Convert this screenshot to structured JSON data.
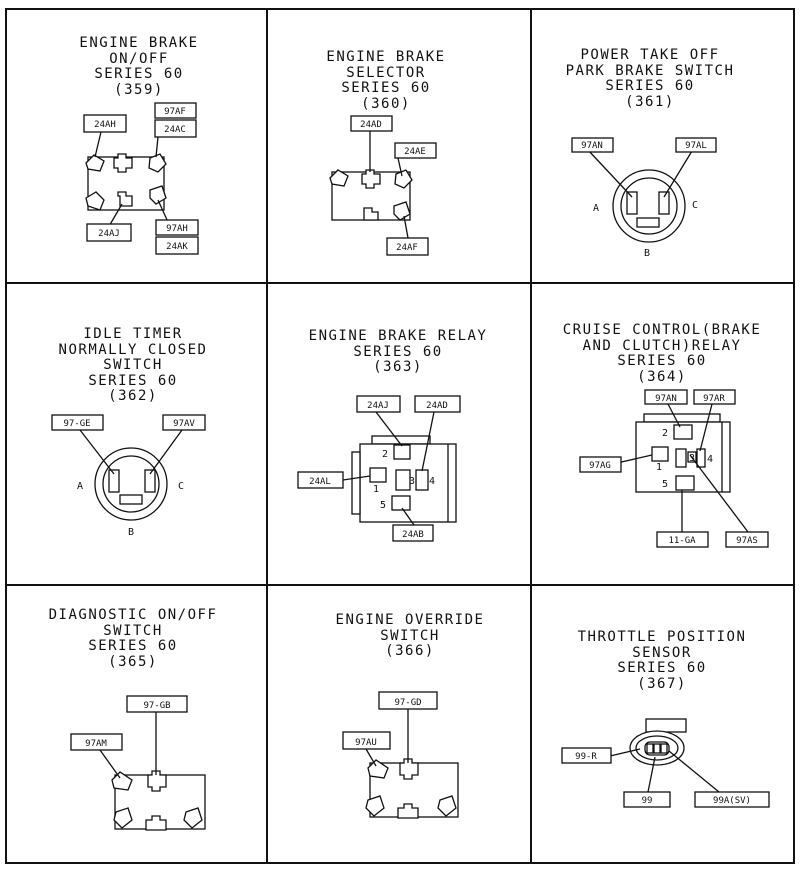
{
  "panels": [
    {
      "title": [
        "ENGINE BRAKE",
        "ON/OFF",
        "SERIES 60",
        "(359)"
      ],
      "labels": [
        "24AH",
        "97AF",
        "24AC",
        "24AJ",
        "97AH",
        "24AK"
      ]
    },
    {
      "title": [
        "ENGINE BRAKE",
        "SELECTOR",
        "SERIES 60",
        "(360)"
      ],
      "labels": [
        "24AD",
        "24AE",
        "24AF"
      ]
    },
    {
      "title": [
        "POWER TAKE OFF",
        "PARK BRAKE SWITCH",
        "SERIES 60",
        "(361)"
      ],
      "labels": [
        "97AN",
        "97AL"
      ],
      "pins": [
        "A",
        "C",
        "B"
      ]
    },
    {
      "title": [
        "IDLE TIMER",
        "NORMALLY CLOSED",
        "SWITCH",
        "SERIES 60",
        "(362)"
      ],
      "labels": [
        "97-GE",
        "97AV"
      ],
      "pins": [
        "A",
        "C",
        "B"
      ]
    },
    {
      "title": [
        "ENGINE BRAKE RELAY",
        "SERIES 60",
        "(363)"
      ],
      "labels": [
        "24AJ",
        "24AD",
        "24AL",
        "24AB"
      ],
      "pins": [
        "2",
        "1",
        "3",
        "4",
        "5"
      ]
    },
    {
      "title": [
        "CRUISE CONTROL(BRAKE",
        "AND CLUTCH)RELAY",
        "SERIES 60",
        "(364)"
      ],
      "labels": [
        "97AN",
        "97AR",
        "97AG",
        "11-GA",
        "97AS"
      ],
      "pins": [
        "2",
        "1",
        "3",
        "4",
        "5"
      ]
    },
    {
      "title": [
        "DIAGNOSTIC ON/OFF",
        "SWITCH",
        "SERIES 60",
        "(365)"
      ],
      "labels": [
        "97-GB",
        "97AM"
      ]
    },
    {
      "title": [
        "ENGINE OVERRIDE",
        "SWITCH",
        "(366)"
      ],
      "labels": [
        "97-GD",
        "97AU"
      ]
    },
    {
      "title": [
        "THROTTLE POSITION",
        "SENSOR",
        "SERIES 60",
        "(367)"
      ],
      "labels": [
        "99-R",
        "99",
        "99A(SV)"
      ]
    }
  ]
}
